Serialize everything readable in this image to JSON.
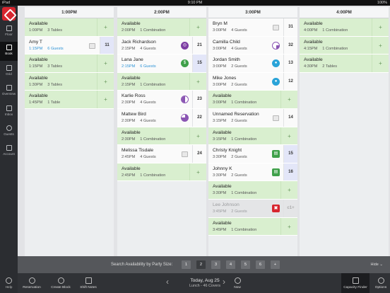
{
  "status": {
    "left": "iPad",
    "time": "9:10 PM",
    "right": "100%"
  },
  "sidebar": {
    "items": [
      {
        "label": "Floor"
      },
      {
        "label": "Book"
      },
      {
        "label": "Grid"
      },
      {
        "label": "Overview"
      },
      {
        "label": "Inbox"
      },
      {
        "label": "Guests"
      },
      {
        "label": "Account"
      }
    ],
    "help": "Help"
  },
  "columns": [
    {
      "header": "1:00PM",
      "cells": [
        {
          "kind": "avail",
          "title": "Available",
          "time": "1:00PM",
          "detail": "3 Tables"
        },
        {
          "kind": "res",
          "style": "blue",
          "title": "Amy T",
          "time": "1:15PM",
          "detail": "6 Guests",
          "icon": "note",
          "table": "11",
          "hl": true
        },
        {
          "kind": "avail",
          "title": "Available",
          "time": "1:15PM",
          "detail": "3 Tables"
        },
        {
          "kind": "avail",
          "title": "Available",
          "time": "1:30PM",
          "detail": "3 Tables"
        },
        {
          "kind": "avail",
          "title": "Available",
          "time": "1:45PM",
          "detail": "1 Table"
        }
      ]
    },
    {
      "header": "2:00PM",
      "cells": [
        {
          "kind": "avail",
          "title": "Available",
          "time": "2:00PM",
          "detail": "1 Combination"
        },
        {
          "kind": "res",
          "title": "Jack Richardson",
          "time": "2:15PM",
          "detail": "4 Guests",
          "icon": "purple",
          "glyph": "◎",
          "table": "21"
        },
        {
          "kind": "res",
          "style": "blue",
          "title": "Lana Jane",
          "time": "2:15PM",
          "detail": "6 Guests",
          "icon": "green",
          "glyph": "$",
          "table": "15",
          "hl": true
        },
        {
          "kind": "avail",
          "title": "Available",
          "time": "2:15PM",
          "detail": "1 Combination"
        },
        {
          "kind": "res",
          "title": "Karlie Ross",
          "time": "2:30PM",
          "detail": "4 Guests",
          "icon": "half",
          "table": "23"
        },
        {
          "kind": "res",
          "title": "Mattew Bird",
          "time": "2:30PM",
          "detail": "4 Guests",
          "icon": "three",
          "table": "22"
        },
        {
          "kind": "avail",
          "title": "Available",
          "time": "2:30PM",
          "detail": "1 Combination"
        },
        {
          "kind": "res",
          "title": "Melissa Tisdale",
          "time": "2:45PM",
          "detail": "4 Guests",
          "icon": "note",
          "table": "24"
        },
        {
          "kind": "avail",
          "title": "Available",
          "time": "2:45PM",
          "detail": "1 Combination"
        }
      ]
    },
    {
      "header": "3:00PM",
      "cells": [
        {
          "kind": "res",
          "title": "Bryn M",
          "time": "3:00PM",
          "detail": "4 Guests",
          "icon": "note",
          "table": "31"
        },
        {
          "kind": "res",
          "title": "Camilla Child",
          "time": "3:00PM",
          "detail": "4 Guests",
          "icon": "quarter",
          "table": "32"
        },
        {
          "kind": "res",
          "title": "Jordan Smith",
          "time": "3:00PM",
          "detail": "2 Guests",
          "icon": "teal",
          "glyph": "●",
          "table": "13"
        },
        {
          "kind": "res",
          "title": "Mike Jones",
          "time": "3:00PM",
          "detail": "2 Guests",
          "icon": "teal",
          "glyph": "●",
          "table": "12"
        },
        {
          "kind": "avail",
          "title": "Available",
          "time": "3:00PM",
          "detail": "1 Combination"
        },
        {
          "kind": "res",
          "title": "Unnamed Reservation",
          "time": "3:15PM",
          "detail": "2 Guests",
          "icon": "note",
          "table": "14"
        },
        {
          "kind": "avail",
          "title": "Available",
          "time": "3:15PM",
          "detail": "1 Combination"
        },
        {
          "kind": "res",
          "title": "Christy Knight",
          "time": "3:30PM",
          "detail": "2 Guests",
          "icon": "tgreen",
          "glyph": "▤",
          "table": "15",
          "hl": true
        },
        {
          "kind": "res",
          "title": "Johnny K",
          "time": "3:30PM",
          "detail": "2 Guests",
          "icon": "tgreen",
          "glyph": "▤",
          "table": "16",
          "hl": true
        },
        {
          "kind": "avail",
          "title": "Available",
          "time": "3:30PM",
          "detail": "1 Combination"
        },
        {
          "kind": "res",
          "style": "grey",
          "title": "Lee Johnson",
          "time": "3:45PM",
          "detail": "2 Guests",
          "icon": "red",
          "glyph": "▣",
          "table": "c1+"
        },
        {
          "kind": "avail",
          "title": "Available",
          "time": "3:45PM",
          "detail": "1 Combination"
        }
      ]
    },
    {
      "header": "4:00PM",
      "cells": [
        {
          "kind": "avail",
          "title": "Available",
          "time": "4:00PM",
          "detail": "1 Combination"
        },
        {
          "kind": "avail",
          "title": "Available",
          "time": "4:15PM",
          "detail": "1 Combination"
        },
        {
          "kind": "avail",
          "title": "Available",
          "time": "4:30PM",
          "detail": "2 Tables"
        }
      ]
    }
  ],
  "search": {
    "label": "Search Availability by Party Size:",
    "sizes": [
      "1",
      "2",
      "3",
      "4",
      "5",
      "6",
      "+"
    ],
    "selected": "2",
    "hide": "Hide"
  },
  "toolbar": {
    "reservation": "Reservation",
    "create_block": "Create Block",
    "shift_notes": "Shift Notes",
    "date": "Today, Aug 25",
    "subtitle": "Lunch - 46 Covers",
    "now": "Now",
    "capacity_finder": "Capacity Finder",
    "options": "Options"
  }
}
